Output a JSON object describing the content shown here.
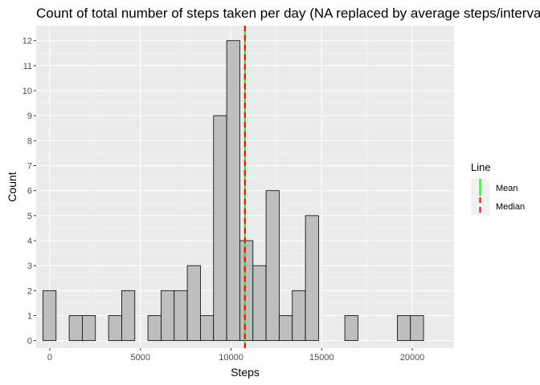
{
  "chart_data": {
    "type": "bar",
    "title": "Count of total number of steps taken per day (NA replaced by average steps/interval)",
    "xlabel": "Steps",
    "ylabel": "Count",
    "xlim": [
      -750,
      22300
    ],
    "ylim": [
      -0.3,
      12.6
    ],
    "x_ticks": [
      0,
      5000,
      10000,
      15000,
      20000
    ],
    "y_ticks": [
      0,
      1,
      2,
      3,
      4,
      5,
      6,
      7,
      8,
      9,
      10,
      11,
      12
    ],
    "bin_width": 724,
    "bin_centers": [
      -14,
      710,
      1434,
      2158,
      2882,
      3606,
      4330,
      5054,
      5778,
      6502,
      7226,
      7950,
      8674,
      9398,
      10122,
      10846,
      11570,
      12294,
      13018,
      13742,
      14466,
      15190,
      15914,
      16638,
      17362,
      18086,
      18810,
      19534,
      20258,
      20982
    ],
    "values": [
      2,
      0,
      1,
      1,
      0,
      1,
      2,
      0,
      1,
      2,
      2,
      3,
      1,
      9,
      12,
      4,
      3,
      6,
      1,
      2,
      5,
      0,
      0,
      1,
      0,
      0,
      0,
      1,
      1,
      0
    ],
    "bar_fill": "#bebebe",
    "bar_outline": "#000000",
    "panel_background": "#ebebeb",
    "grid": true,
    "vlines": [
      {
        "name": "Mean",
        "x": 10766,
        "color": "#00ff00",
        "style": "solid"
      },
      {
        "name": "Median",
        "x": 10766,
        "color": "#ff0000",
        "style": "dashed"
      }
    ],
    "legend": {
      "title": "Line",
      "position": "right",
      "entries": [
        "Mean",
        "Median"
      ]
    }
  }
}
